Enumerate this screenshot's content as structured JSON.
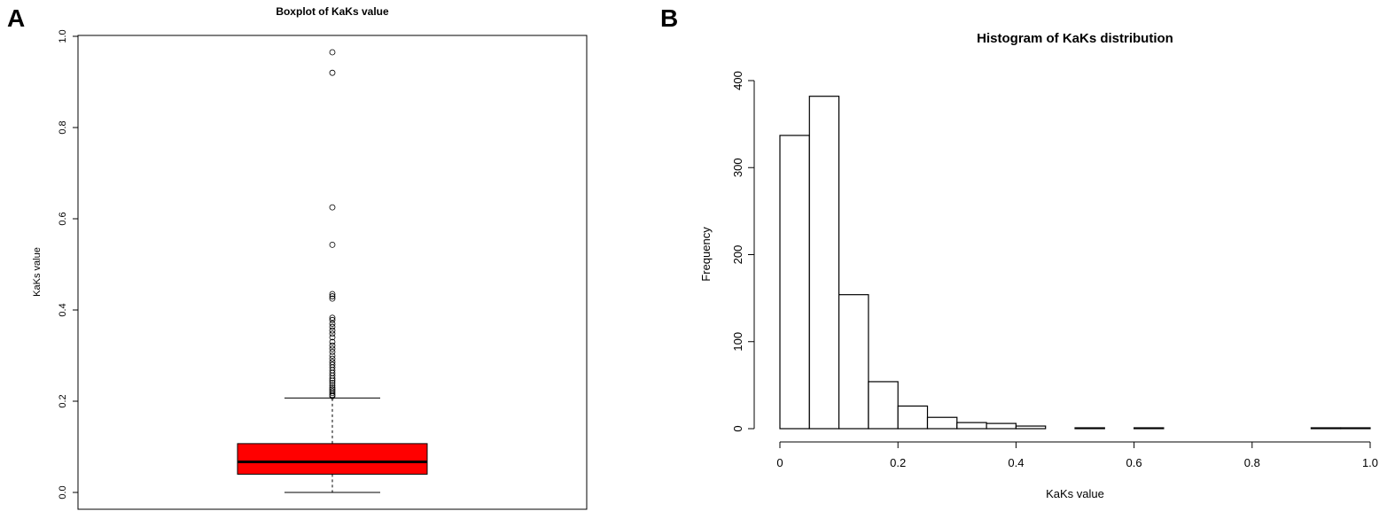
{
  "panels": [
    {
      "label": "A",
      "chart_type": "boxplot"
    },
    {
      "label": "B",
      "chart_type": "histogram"
    }
  ],
  "chart_data": [
    {
      "type": "boxplot",
      "title": "Boxplot of KaKs value",
      "xlabel": "",
      "ylabel": "KaKs value",
      "ylim": [
        0,
        1
      ],
      "yticks": [
        0.0,
        0.2,
        0.4,
        0.6,
        0.8,
        1.0
      ],
      "ytick_labels": [
        "0.0",
        "0.2",
        "0.4",
        "0.6",
        "0.8",
        "1.0"
      ],
      "box_color": "#ff0000",
      "stats": {
        "whisker_low": 0.0,
        "q1": 0.04,
        "median": 0.067,
        "q3": 0.107,
        "whisker_high": 0.207
      },
      "outliers": [
        0.965,
        0.92,
        0.625,
        0.543,
        0.435,
        0.43,
        0.425,
        0.383,
        0.378,
        0.37,
        0.363,
        0.355,
        0.348,
        0.34,
        0.33,
        0.322,
        0.315,
        0.308,
        0.3,
        0.293,
        0.286,
        0.28,
        0.274,
        0.268,
        0.262,
        0.256,
        0.25,
        0.245,
        0.24,
        0.235,
        0.23,
        0.226,
        0.222,
        0.218,
        0.214,
        0.211
      ]
    },
    {
      "type": "bar",
      "subtype": "histogram",
      "title": "Histogram of KaKs distribution",
      "xlabel": "KaKs value",
      "ylabel": "Frequency",
      "xlim": [
        0,
        1
      ],
      "ylim": [
        0,
        400
      ],
      "bin_width": 0.05,
      "bins": [
        [
          0.0,
          0.05
        ],
        [
          0.05,
          0.1
        ],
        [
          0.1,
          0.15
        ],
        [
          0.15,
          0.2
        ],
        [
          0.2,
          0.25
        ],
        [
          0.25,
          0.3
        ],
        [
          0.3,
          0.35
        ],
        [
          0.35,
          0.4
        ],
        [
          0.4,
          0.45
        ],
        [
          0.45,
          0.5
        ],
        [
          0.5,
          0.55
        ],
        [
          0.55,
          0.6
        ],
        [
          0.6,
          0.65
        ],
        [
          0.65,
          0.7
        ],
        [
          0.7,
          0.75
        ],
        [
          0.75,
          0.8
        ],
        [
          0.8,
          0.85
        ],
        [
          0.85,
          0.9
        ],
        [
          0.9,
          0.95
        ],
        [
          0.95,
          1.0
        ]
      ],
      "values": [
        337,
        382,
        154,
        54,
        26,
        13,
        7,
        6,
        3,
        0,
        1,
        0,
        1,
        0,
        0,
        0,
        0,
        0,
        1,
        1
      ],
      "xticks": [
        0.0,
        0.2,
        0.4,
        0.6,
        0.8,
        1.0
      ],
      "xtick_labels": [
        "0",
        "0.2",
        "0.4",
        "0.6",
        "0.8",
        "1.0"
      ],
      "yticks": [
        0,
        100,
        200,
        300,
        400
      ],
      "ytick_labels": [
        "0",
        "100",
        "200",
        "300",
        "400"
      ]
    }
  ]
}
